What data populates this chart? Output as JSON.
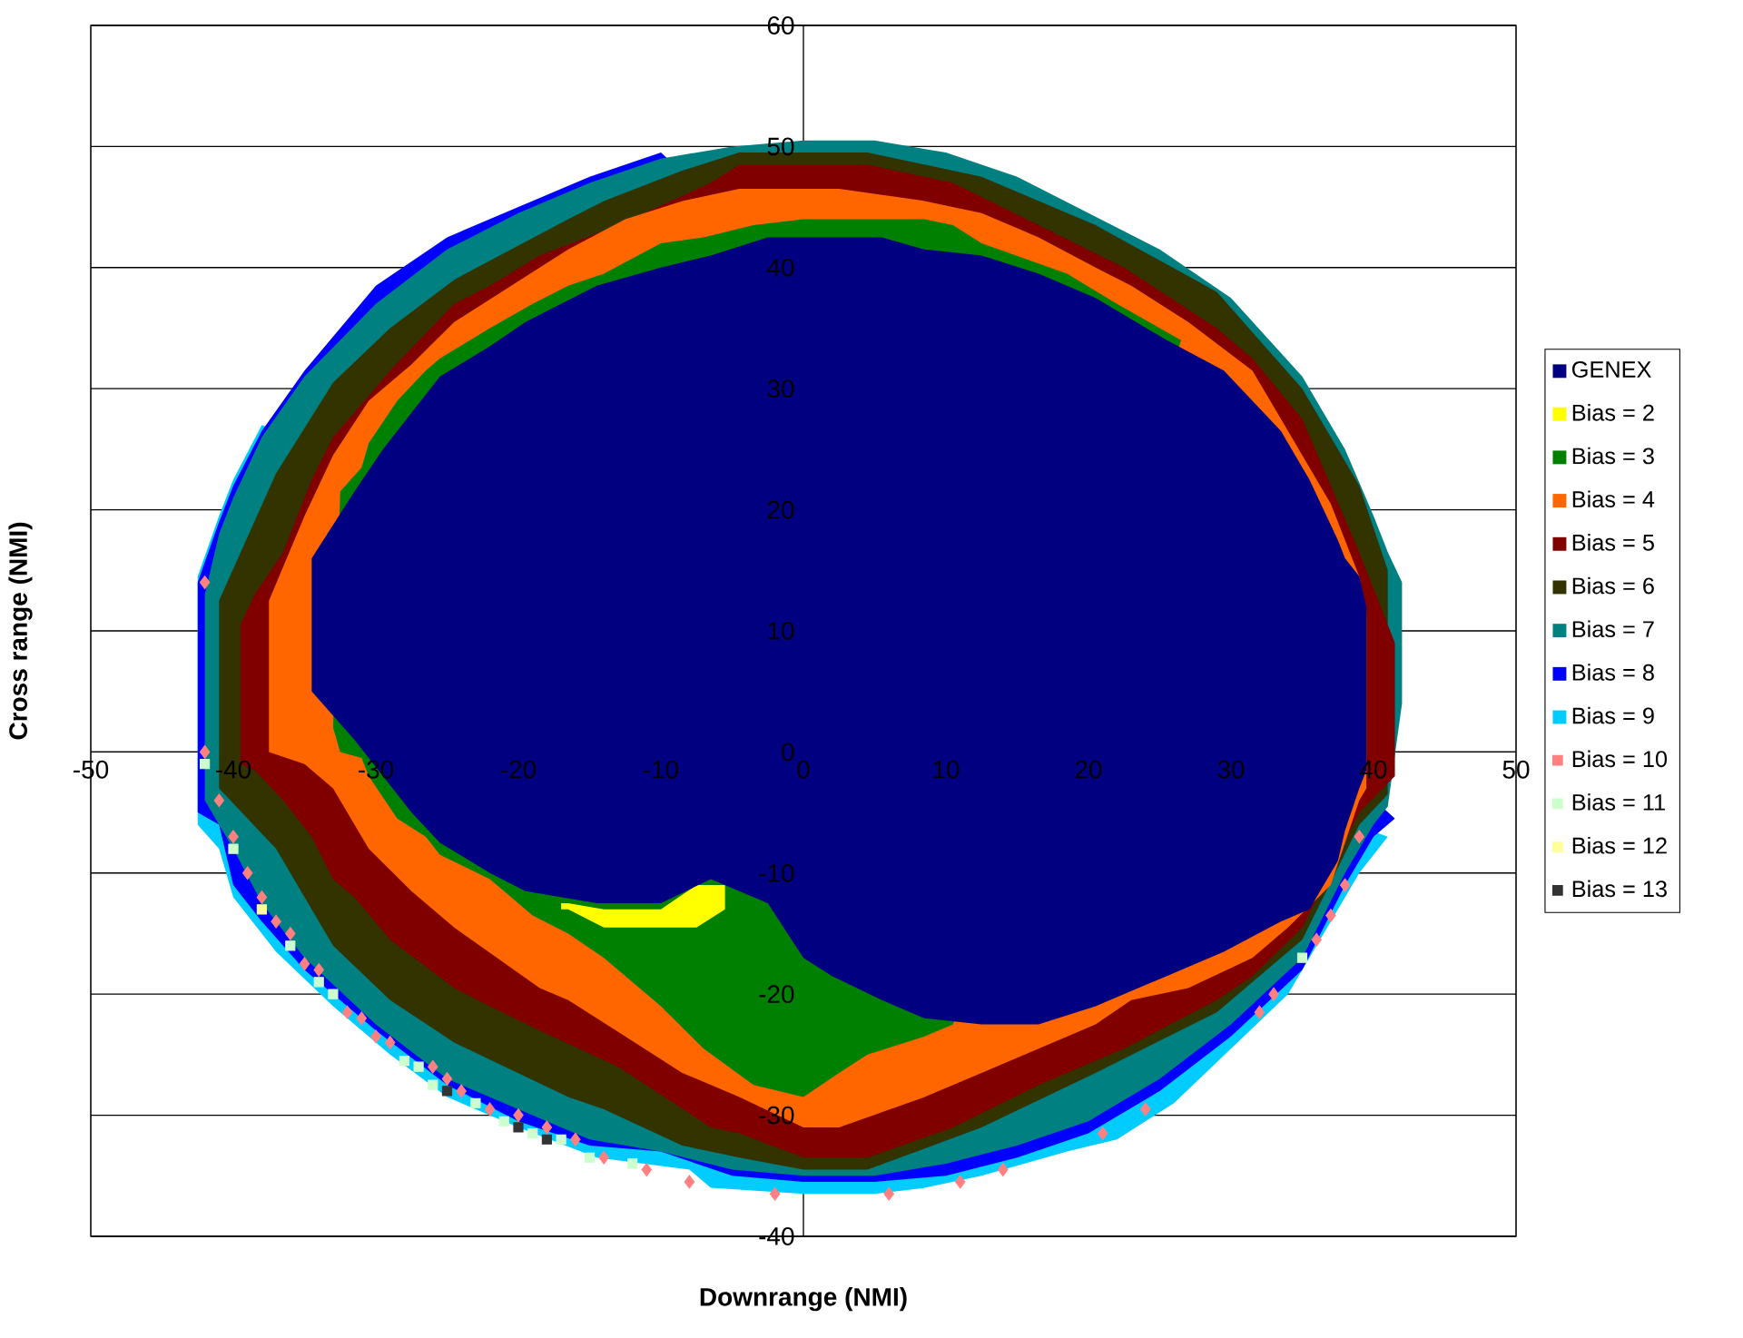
{
  "chart_data": {
    "type": "area",
    "xlabel": "Downrange (NMI)",
    "ylabel": "Cross range (NMI)",
    "xlim": [
      -50,
      50
    ],
    "ylim": [
      -40,
      60
    ],
    "xticks": [
      -50,
      -40,
      -30,
      -20,
      -10,
      0,
      10,
      20,
      30,
      40,
      50
    ],
    "yticks": [
      -40,
      -30,
      -20,
      -10,
      0,
      10,
      20,
      30,
      40,
      50,
      60
    ],
    "grid": "y",
    "legend": "right",
    "series": [
      {
        "name": "GENEX",
        "color": "#000080",
        "x": [
          -34.5,
          -31.5,
          -29.5,
          -27.5,
          -25.5,
          -22,
          -19.5,
          -14.5,
          -10,
          -6.5,
          -2.5,
          5.5,
          8.5,
          12.5,
          16.5,
          20.5,
          25.5,
          29.5,
          33.5,
          35.5,
          37.5,
          38,
          39,
          39.5,
          39.5,
          39,
          38,
          37.5,
          35.5,
          33.5,
          29.5,
          25.5,
          20.5,
          16.5,
          12.5,
          8.5,
          5.5,
          2,
          0,
          -2.5,
          -6.5,
          -10,
          -14.5,
          -19.5,
          -22,
          -25.5,
          -27.5,
          -29.5,
          -31.5,
          -34.5
        ],
        "values": [
          16,
          21.5,
          25,
          28,
          31,
          33.5,
          35.5,
          38.5,
          40,
          41,
          42.5,
          42.5,
          41.5,
          41,
          39.5,
          37.5,
          34,
          31.5,
          26.5,
          22.5,
          17.5,
          16,
          14.5,
          12,
          -1.5,
          -3,
          -6.5,
          -9,
          -13,
          -14,
          -16.5,
          -18.5,
          -21,
          -22.5,
          -22.5,
          -22,
          -20.5,
          -18.5,
          -17,
          -12.5,
          -10.5,
          -12.5,
          -12.5,
          -11.5,
          -10,
          -7.5,
          -5,
          -2,
          1,
          5
        ]
      },
      {
        "name": "Bias = 2",
        "color": "#ffff00",
        "x": [
          -17,
          -16.5,
          -14,
          -10,
          -7.5,
          -5.5,
          -5.5,
          -7.5,
          -14,
          -16.5,
          -17
        ],
        "values": [
          -12.5,
          -12.5,
          -13,
          -13,
          -11,
          -11,
          -13,
          -14.5,
          -14.5,
          -13,
          -13
        ]
      },
      {
        "name": "Bias = 3",
        "color": "#008000",
        "x": [
          -32.5,
          -31,
          -30.5,
          -28.5,
          -26.5,
          -25.5,
          -22,
          -19,
          -16.5,
          -14,
          -10,
          -7,
          -3.5,
          0,
          8.5,
          10.5,
          12.5,
          18.5,
          22,
          26.5,
          10.5,
          8.5,
          4.5,
          2.5,
          0,
          -3.5,
          -7,
          -10,
          -14,
          -16.5,
          -19,
          -22,
          -25.5,
          -26.5,
          -28.5,
          -30.5,
          -31,
          -32.5,
          -33
        ],
        "values": [
          21.5,
          23.5,
          25.5,
          29,
          31.5,
          32.5,
          35,
          37,
          38.5,
          39.5,
          42,
          42.5,
          43.5,
          44,
          44,
          43.5,
          42,
          39.5,
          37,
          34,
          -22.5,
          -23.5,
          -25,
          -26.5,
          -28.5,
          -27.5,
          -24.5,
          -21,
          -17,
          -15,
          -13.5,
          -10.5,
          -8.5,
          -7,
          -5.5,
          -2,
          -0.5,
          0,
          2
        ]
      },
      {
        "name": "Bias = 4",
        "color": "#ff6600",
        "x": [
          -37.5,
          -35,
          -33,
          -30.5,
          -27.5,
          -24.5,
          -18.5,
          -16.5,
          -12.5,
          -8.5,
          -4.5,
          2.5,
          8.5,
          12.5,
          16.5,
          20.5,
          23,
          27,
          31.5,
          34,
          37,
          39,
          39.5,
          39.5,
          39,
          37,
          34,
          31.5,
          27,
          23,
          20.5,
          16.5,
          12.5,
          8.5,
          2.5,
          0,
          -4.5,
          -8.5,
          -12.5,
          -16.5,
          -18.5,
          -24.5,
          -27.5,
          -30.5,
          -33,
          -35,
          -37.5
        ],
        "values": [
          12.5,
          19.5,
          24.5,
          29,
          32,
          35.5,
          40,
          41.5,
          44,
          45.5,
          46.5,
          46.5,
          45.5,
          44.5,
          42.5,
          40,
          38.5,
          35.5,
          31.5,
          26.5,
          20.5,
          14.5,
          11.5,
          -3,
          -4,
          -11,
          -14.5,
          -17,
          -19.5,
          -20.5,
          -22.5,
          -24.5,
          -26.5,
          -28.5,
          -31,
          -31,
          -28.5,
          -26.5,
          -23.5,
          -20.5,
          -19.5,
          -14.5,
          -11.5,
          -8,
          -3,
          -1,
          0
        ]
      },
      {
        "name": "Bias = 5",
        "color": "#800000",
        "x": [
          -39.5,
          -38.5,
          -36.5,
          -34.5,
          -33,
          -31.5,
          -29,
          -24.5,
          -22,
          -18.5,
          -13,
          -6.5,
          -4.5,
          4.5,
          10.5,
          16.5,
          22.5,
          29,
          31.5,
          35,
          39,
          41.5,
          41.5,
          39,
          35,
          31.5,
          29,
          22.5,
          16.5,
          10.5,
          4.5,
          0,
          -4.5,
          -6.5,
          -13,
          -18.5,
          -22,
          -24.5,
          -29,
          -31.5,
          -33,
          -34.5,
          -36.5,
          -38.5,
          -39.5
        ],
        "values": [
          10.5,
          13,
          16.5,
          22.5,
          26,
          28,
          31.5,
          37,
          38.5,
          41,
          43.5,
          47,
          48.5,
          48.5,
          47,
          43.5,
          40,
          35,
          32.5,
          27.5,
          16.5,
          9,
          -2,
          -5,
          -14.5,
          -18.5,
          -20.5,
          -24.5,
          -27.5,
          -31,
          -33.5,
          -33.5,
          -31.5,
          -31,
          -26,
          -23,
          -21,
          -19.5,
          -15.5,
          -12,
          -10.5,
          -7,
          -4,
          -1.5,
          -1
        ]
      },
      {
        "name": "Bias = 6",
        "color": "#333300",
        "x": [
          -41,
          -37,
          -33,
          -29,
          -24.5,
          -16.5,
          -14,
          -8.5,
          -4.5,
          4.5,
          12.5,
          20.5,
          29,
          35,
          39,
          41,
          41,
          39,
          35,
          29,
          20.5,
          12.5,
          4.5,
          0,
          -4.5,
          -8.5,
          -14,
          -16.5,
          -24.5,
          -29,
          -33,
          -37,
          -41
        ],
        "values": [
          12.5,
          23,
          30.5,
          35,
          39,
          44,
          45.5,
          48,
          49.5,
          49.5,
          47.5,
          43.5,
          38,
          30,
          22,
          15,
          -3.5,
          -6,
          -15.5,
          -21.5,
          -26.5,
          -31,
          -34.5,
          -34.5,
          -33.5,
          -32.5,
          -29.5,
          -28.5,
          -24,
          -20.5,
          -16,
          -8,
          -3
        ]
      },
      {
        "name": "Bias = 7",
        "color": "#008080",
        "x": [
          -42,
          -41,
          -40,
          -38,
          -35,
          -30,
          -25,
          -20,
          -15,
          -10,
          -5,
          0,
          5,
          10,
          15,
          20,
          25,
          30,
          35,
          38,
          40,
          41,
          42,
          42,
          41,
          40,
          38,
          35,
          30,
          25,
          20,
          15,
          10,
          5,
          0,
          -5,
          -10,
          -15,
          -20,
          -25,
          -30,
          -35,
          -38,
          -40,
          -41,
          -42
        ],
        "values": [
          13,
          18,
          21,
          26,
          31,
          37,
          41.5,
          44.5,
          47,
          49,
          50,
          50.5,
          50.5,
          49.5,
          47.5,
          44.5,
          41.5,
          37.5,
          31,
          25,
          19.5,
          16.5,
          14,
          4,
          -4.5,
          -6,
          -10,
          -17,
          -22.5,
          -27,
          -30.5,
          -32.5,
          -34,
          -35,
          -35,
          -34.5,
          -33,
          -32,
          -29.5,
          -27,
          -22.5,
          -17,
          -12.5,
          -8,
          -6,
          -4
        ]
      },
      {
        "name": "Bias = 8",
        "color": "#0000ff",
        "x": [
          -42.5,
          -41,
          -40,
          -38,
          -35,
          -30,
          -25,
          -20,
          -15,
          -10,
          41.5,
          40,
          38,
          35,
          30,
          25,
          20,
          15,
          10,
          5,
          0,
          -5,
          -10,
          -15,
          -20,
          -25,
          -30,
          -35,
          -38,
          -40,
          -41,
          -42.5
        ],
        "values": [
          14,
          19,
          22,
          26.5,
          31.5,
          38.5,
          42.5,
          45,
          47.5,
          49.5,
          -5.5,
          -7,
          -11,
          -18,
          -23.5,
          -28,
          -31.5,
          -33.5,
          -35,
          -35.5,
          -35.5,
          -35,
          -33,
          -32.5,
          -30.5,
          -27.5,
          -23,
          -18,
          -14,
          -11,
          -6,
          -5
        ]
      },
      {
        "name": "Bias = 9",
        "color": "#00ccff",
        "x": [
          -42.5,
          -41,
          -40,
          -38,
          41,
          39,
          38,
          34,
          30,
          26,
          22,
          18.5,
          12.5,
          8.5,
          5,
          0,
          -6.5,
          -8,
          -14.5,
          -20,
          -25,
          -29,
          -33,
          -37,
          -38,
          -40,
          -41,
          -42.5
        ],
        "values": [
          14.5,
          19.5,
          22.5,
          27,
          -7,
          -10,
          -12,
          -20,
          -24.5,
          -29,
          -32,
          -33,
          -35,
          -36,
          -36.5,
          -36.5,
          -36,
          -34.5,
          -33.5,
          -31,
          -28.5,
          -25,
          -21,
          -16.5,
          -15,
          -12,
          -8,
          -6
        ]
      },
      {
        "name": "Bias = 10",
        "type": "scatter",
        "marker": "diamond",
        "color": "#ff8080",
        "x": [
          -42,
          -42,
          -41,
          -40,
          -39,
          -38,
          -37,
          -36,
          -35,
          -34,
          -32,
          -31,
          -30,
          -29,
          -26,
          -25,
          -24,
          -22,
          -20,
          -18,
          -16,
          -14,
          -11,
          -8,
          -2,
          6,
          11,
          14,
          21,
          24,
          32,
          33,
          36,
          37,
          38,
          39
        ],
        "values": [
          14,
          0,
          -4,
          -7,
          -10,
          -12,
          -14,
          -15,
          -17.5,
          -18,
          -21.5,
          -22,
          -23.5,
          -24,
          -26,
          -27,
          -28,
          -29.5,
          -30,
          -31,
          -32,
          -33.5,
          -34.5,
          -35.5,
          -36.5,
          -36.5,
          -35.5,
          -34.5,
          -31.5,
          -29.5,
          -21.5,
          -20,
          -15.5,
          -13.5,
          -11,
          -7
        ]
      },
      {
        "name": "Bias = 11",
        "type": "scatter",
        "marker": "square",
        "color": "#ccffcc",
        "x": [
          -42,
          -40,
          -36,
          -34,
          -33,
          -28,
          -27,
          -26,
          -23,
          -21,
          -19,
          -17,
          -15,
          -12,
          35
        ],
        "values": [
          -1,
          -8,
          -16,
          -19,
          -20,
          -25.5,
          -26,
          -27.5,
          -29,
          -30.5,
          -31.5,
          -32,
          -33.5,
          -34,
          -17
        ]
      },
      {
        "name": "Bias = 12",
        "type": "scatter",
        "marker": "square",
        "color": "#ffff99",
        "x": [
          -38
        ],
        "values": [
          -13
        ]
      },
      {
        "name": "Bias = 13",
        "type": "scatter",
        "marker": "square",
        "color": "#333333",
        "x": [
          -25,
          -20,
          -18
        ],
        "values": [
          -28,
          -31,
          -32
        ]
      }
    ]
  }
}
